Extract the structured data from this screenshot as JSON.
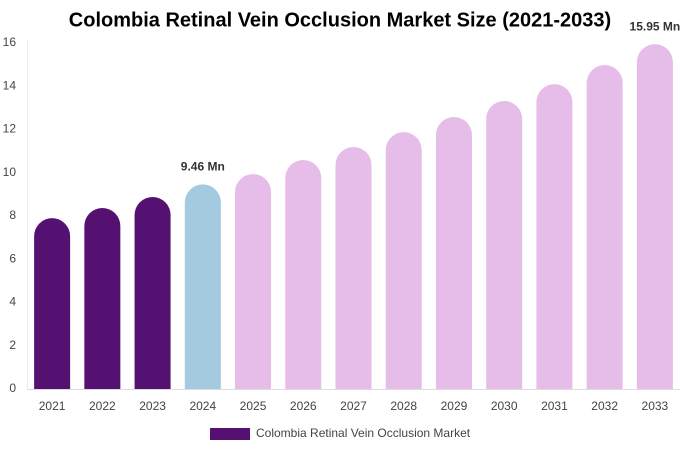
{
  "chart_data": {
    "type": "bar",
    "title": "Colombia Retinal Vein Occlusion Market Size (2021-2033)",
    "categories": [
      "2021",
      "2022",
      "2023",
      "2024",
      "2025",
      "2026",
      "2027",
      "2028",
      "2029",
      "2030",
      "2031",
      "2032",
      "2033"
    ],
    "series": [
      {
        "name": "Colombia Retinal Vein Occlusion Market",
        "color": "#541172",
        "colors": [
          "#541172",
          "#541172",
          "#541172",
          "#a3cadf",
          "#e6bde8",
          "#e6bde8",
          "#e6bde8",
          "#e6bde8",
          "#e6bde8",
          "#e6bde8",
          "#e6bde8",
          "#e6bde8",
          "#e6bde8"
        ],
        "values": [
          7.9,
          8.37,
          8.88,
          9.46,
          9.94,
          10.59,
          11.19,
          11.88,
          12.58,
          13.32,
          14.1,
          14.98,
          15.95
        ],
        "value_labels": [
          null,
          null,
          null,
          "9.46 Mn",
          null,
          null,
          null,
          null,
          null,
          null,
          null,
          null,
          "15.95 Mn"
        ]
      }
    ],
    "ylim": [
      0,
      16
    ],
    "yticks": [
      0,
      2,
      4,
      6,
      8,
      10,
      12,
      14,
      16
    ],
    "grid": false
  }
}
